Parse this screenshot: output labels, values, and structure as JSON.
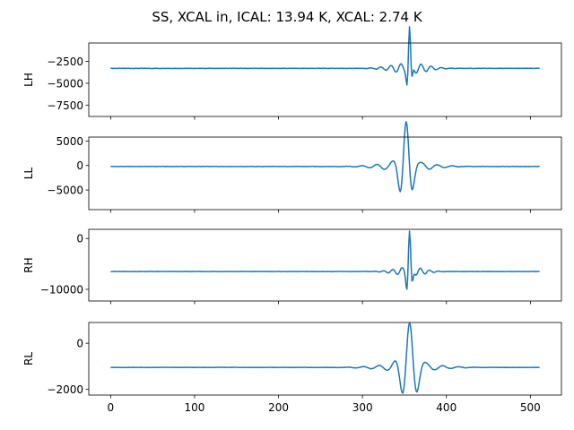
{
  "figure": {
    "title": "SS, XCAL in, ICAL: 13.94 K, XCAL: 2.74 K"
  },
  "colors": {
    "line": "#1f77b4",
    "axes": "#000000",
    "background": "#ffffff"
  },
  "chart_data": [
    {
      "type": "line",
      "ylabel": "LH",
      "xlim": [
        -26,
        537
      ],
      "ylim": [
        -8800,
        -400
      ],
      "yticks": [
        -2500,
        -5000,
        -7500
      ],
      "ytick_labels": [
        "−2500",
        "−5000",
        "−7500"
      ],
      "baseline": -3300,
      "wave": {
        "center": 356,
        "a1": 4400,
        "s1": 2.2,
        "p1": 7.5,
        "a2": 600,
        "s2": 20,
        "p2": 12,
        "phase2": 0.6
      },
      "series": [
        {
          "x_range": [
            0,
            511
          ]
        }
      ]
    },
    {
      "type": "line",
      "ylabel": "LL",
      "xlim": [
        -26,
        537
      ],
      "ylim": [
        -9000,
        5800
      ],
      "yticks": [
        5000,
        0,
        -5000
      ],
      "ytick_labels": [
        "5000",
        "0",
        "−5000"
      ],
      "baseline": -200,
      "wave": {
        "center": 352,
        "a1": 8300,
        "s1": 6.5,
        "p1": 16,
        "a2": 900,
        "s2": 28,
        "p2": 18,
        "phase2": 1.2
      },
      "series": [
        {
          "x_range": [
            0,
            511
          ]
        }
      ]
    },
    {
      "type": "line",
      "ylabel": "RH",
      "xlim": [
        -26,
        537
      ],
      "ylim": [
        -12300,
        1800
      ],
      "yticks": [
        0,
        -10000
      ],
      "ytick_labels": [
        "0",
        "−10000"
      ],
      "baseline": -6500,
      "wave": {
        "center": 356,
        "a1": 7600,
        "s1": 2.5,
        "p1": 8,
        "a2": 900,
        "s2": 16,
        "p2": 11,
        "phase2": 0.4
      },
      "series": [
        {
          "x_range": [
            0,
            511
          ]
        }
      ]
    },
    {
      "type": "line",
      "ylabel": "RL",
      "xlim": [
        -26,
        537
      ],
      "ylim": [
        -2250,
        900
      ],
      "yticks": [
        0,
        -2000
      ],
      "ytick_labels": [
        "0",
        "−2000"
      ],
      "baseline": -1050,
      "wave": {
        "center": 356,
        "a1": 1800,
        "s1": 8,
        "p1": 19,
        "a2": 160,
        "s2": 32,
        "p2": 19,
        "phase2": 1.0
      },
      "series": [
        {
          "x_range": [
            0,
            511
          ]
        }
      ],
      "xticks": [
        0,
        100,
        200,
        300,
        400,
        500
      ],
      "xtick_labels": [
        "0",
        "100",
        "200",
        "300",
        "400",
        "500"
      ]
    }
  ]
}
